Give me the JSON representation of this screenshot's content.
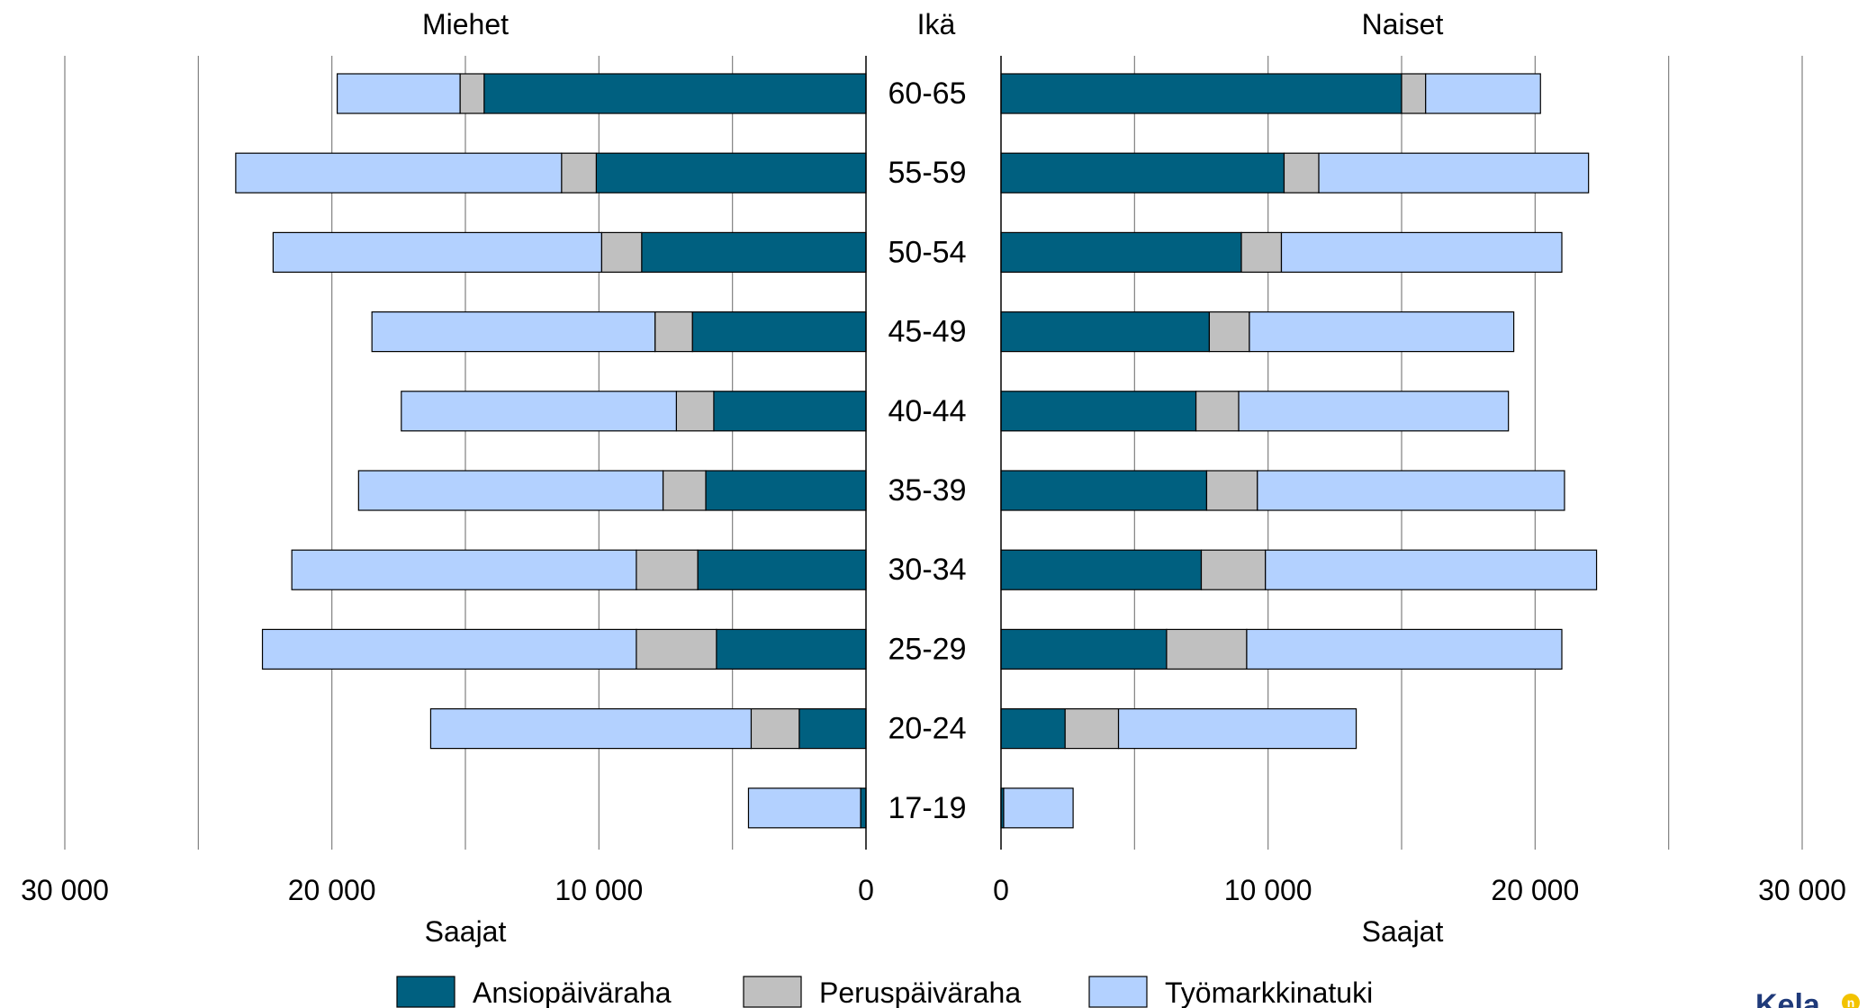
{
  "chart_data": {
    "type": "bar",
    "orientation": "horizontal-butterfly",
    "stacked": true,
    "title_left": "Miehet",
    "title_center": "Ikä",
    "title_right": "Naiset",
    "xlabel_left": "Saajat",
    "xlabel_right": "Saajat",
    "categories": [
      "60-65",
      "55-59",
      "50-54",
      "45-49",
      "40-44",
      "35-39",
      "30-34",
      "25-29",
      "20-24",
      "17-19"
    ],
    "xlim": [
      0,
      30000
    ],
    "x_ticks": [
      0,
      10000,
      20000,
      30000
    ],
    "x_tick_labels": [
      "0",
      "10 000",
      "20 000",
      "30 000"
    ],
    "grid": true,
    "legend_placement": "bottom",
    "legend": [
      "Ansiopäiväraha",
      "Peruspäiväraha",
      "Työmarkkinatuki"
    ],
    "colors": {
      "Ansiopäiväraha": "#006080",
      "Peruspäiväraha": "#c0c0c0",
      "Työmarkkinatuki": "#b3d1ff"
    },
    "men": [
      {
        "name": "Ansiopäiväraha",
        "values": [
          14300,
          10100,
          8400,
          6500,
          5700,
          6000,
          6300,
          5600,
          2500,
          200
        ]
      },
      {
        "name": "Peruspäiväraha",
        "values": [
          900,
          1300,
          1500,
          1400,
          1400,
          1600,
          2300,
          3000,
          1800,
          0
        ]
      },
      {
        "name": "Työmarkkinatuki",
        "values": [
          4600,
          12200,
          12300,
          10600,
          10300,
          11400,
          12900,
          14000,
          12000,
          4200
        ]
      }
    ],
    "women": [
      {
        "name": "Ansiopäiväraha",
        "values": [
          15000,
          10600,
          9000,
          7800,
          7300,
          7700,
          7500,
          6200,
          2400,
          100
        ]
      },
      {
        "name": "Peruspäiväraha",
        "values": [
          900,
          1300,
          1500,
          1500,
          1600,
          1900,
          2400,
          3000,
          2000,
          0
        ]
      },
      {
        "name": "Työmarkkinatuki",
        "values": [
          4300,
          10100,
          10500,
          9900,
          10100,
          11500,
          12400,
          11800,
          8900,
          2600
        ]
      }
    ]
  },
  "brand": {
    "logo_text": "Kela"
  }
}
